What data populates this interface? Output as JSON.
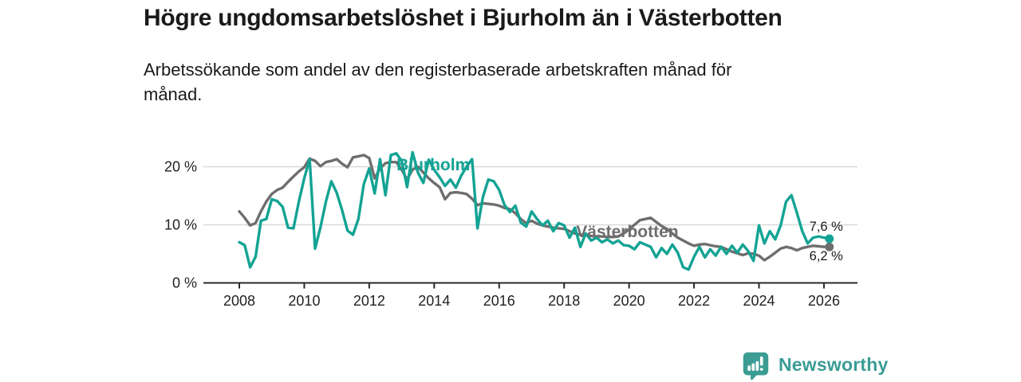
{
  "header": {
    "title": "Högre ungdomsarbetslöshet i Bjurholm än i Västerbotten",
    "subtitle": "Arbetssökande som andel av den registerbaserade arbetskraften månad för månad."
  },
  "footer": {
    "brand": "Newsworthy"
  },
  "colors": {
    "grid": "#d9d9d9",
    "axis": "#2a2a2a",
    "text": "#222222",
    "brand": "#3b9c94"
  },
  "chart_data": {
    "type": "line",
    "title": "Högre ungdomsarbetslöshet i Bjurholm än i Västerbotten",
    "x_start": 2008,
    "x_step_years": 0.166667,
    "x_ticks": [
      2008,
      2010,
      2012,
      2014,
      2016,
      2018,
      2020,
      2022,
      2024,
      2026
    ],
    "y_ticks": [
      0,
      10,
      20
    ],
    "y_suffix": " %",
    "ylim": [
      0,
      23.5
    ],
    "grid": true,
    "legend_position": "inline-labels",
    "series": [
      {
        "name": "Västerbotten",
        "color": "#6e6e6e",
        "end_label": "6,2 %",
        "end_label_side": "below",
        "label_pos": {
          "x": 2018.37,
          "y": 7.9
        },
        "values": [
          12.3,
          11.2,
          9.9,
          10.3,
          12.3,
          14.0,
          15.3,
          16.0,
          16.4,
          17.4,
          18.3,
          19.2,
          19.9,
          21.4,
          21.0,
          20.1,
          20.8,
          21.0,
          21.3,
          20.5,
          19.9,
          21.6,
          21.8,
          22.0,
          21.5,
          18.0,
          19.7,
          20.6,
          20.8,
          20.8,
          19.5,
          17.8,
          19.5,
          20.0,
          19.0,
          18.0,
          17.2,
          16.5,
          14.4,
          15.5,
          15.6,
          15.5,
          15.3,
          14.5,
          13.4,
          13.7,
          13.6,
          13.5,
          13.3,
          12.9,
          12.7,
          12.0,
          11.0,
          10.3,
          10.7,
          10.2,
          9.9,
          9.7,
          9.5,
          9.4,
          9.3,
          8.9,
          8.5,
          8.3,
          8.2,
          8.1,
          8.0,
          8.0,
          7.9,
          7.9,
          8.0,
          8.5,
          9.2,
          10.0,
          10.8,
          11.0,
          11.2,
          10.5,
          9.8,
          9.3,
          8.5,
          7.8,
          7.3,
          6.8,
          6.4,
          6.6,
          6.7,
          6.5,
          6.3,
          6.2,
          5.8,
          5.4,
          5.1,
          4.8,
          5.1,
          5.0,
          4.7,
          3.9,
          4.5,
          5.2,
          5.9,
          6.2,
          6.0,
          5.6,
          6.0,
          6.2,
          6.4,
          6.3,
          6.2,
          6.2
        ]
      },
      {
        "name": "Bjurholm",
        "color": "#13a394",
        "end_label": "7,6 %",
        "end_label_side": "above",
        "label_pos": {
          "x": 2012.84,
          "y": 19.4
        },
        "values": [
          7.0,
          6.5,
          2.7,
          4.5,
          10.7,
          11.0,
          14.4,
          14.1,
          13.1,
          9.5,
          9.4,
          14.0,
          18.0,
          21.3,
          5.9,
          9.6,
          14.0,
          17.5,
          15.5,
          12.5,
          9.0,
          8.3,
          11.0,
          17.0,
          19.7,
          15.4,
          21.3,
          15.1,
          22.0,
          22.3,
          21.0,
          16.5,
          22.5,
          19.0,
          17.2,
          21.2,
          19.5,
          18.2,
          16.7,
          17.8,
          16.4,
          18.5,
          20.0,
          21.3,
          9.4,
          14.8,
          17.8,
          17.5,
          16.0,
          13.4,
          12.2,
          13.3,
          10.4,
          9.7,
          12.3,
          11.0,
          9.9,
          10.7,
          8.9,
          10.3,
          9.9,
          7.8,
          9.5,
          6.2,
          8.5,
          7.3,
          7.8,
          7.0,
          7.5,
          6.8,
          7.3,
          6.5,
          6.4,
          5.8,
          7.0,
          6.6,
          6.2,
          4.4,
          6.0,
          5.0,
          6.6,
          5.2,
          2.7,
          2.3,
          4.5,
          6.2,
          4.4,
          5.8,
          4.7,
          6.2,
          5.0,
          6.4,
          5.2,
          6.6,
          5.5,
          3.8,
          9.9,
          6.8,
          8.9,
          7.5,
          9.9,
          14.0,
          15.1,
          12.1,
          8.9,
          6.8,
          7.8,
          8.0,
          7.8,
          7.6
        ]
      }
    ]
  }
}
